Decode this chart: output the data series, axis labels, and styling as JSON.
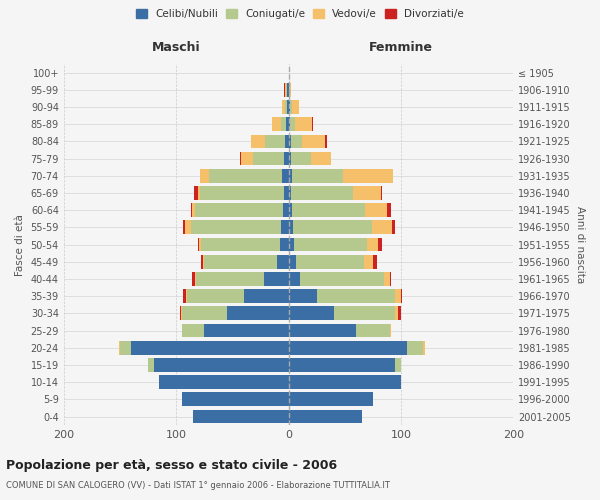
{
  "age_groups": [
    "0-4",
    "5-9",
    "10-14",
    "15-19",
    "20-24",
    "25-29",
    "30-34",
    "35-39",
    "40-44",
    "45-49",
    "50-54",
    "55-59",
    "60-64",
    "65-69",
    "70-74",
    "75-79",
    "80-84",
    "85-89",
    "90-94",
    "95-99",
    "100+"
  ],
  "birth_years": [
    "2001-2005",
    "1996-2000",
    "1991-1995",
    "1986-1990",
    "1981-1985",
    "1976-1980",
    "1971-1975",
    "1966-1970",
    "1961-1965",
    "1956-1960",
    "1951-1955",
    "1946-1950",
    "1941-1945",
    "1936-1940",
    "1931-1935",
    "1926-1930",
    "1921-1925",
    "1916-1920",
    "1911-1915",
    "1906-1910",
    "≤ 1905"
  ],
  "males": {
    "celibi": [
      85,
      95,
      115,
      120,
      140,
      75,
      55,
      40,
      22,
      10,
      8,
      7,
      5,
      4,
      6,
      4,
      3,
      2,
      1,
      1,
      0
    ],
    "coniugati": [
      0,
      0,
      0,
      5,
      10,
      20,
      40,
      50,
      60,
      65,
      70,
      80,
      78,
      75,
      65,
      28,
      18,
      5,
      2,
      1,
      0
    ],
    "vedovi": [
      0,
      0,
      0,
      0,
      1,
      0,
      1,
      1,
      1,
      1,
      2,
      5,
      3,
      2,
      8,
      10,
      12,
      8,
      3,
      1,
      0
    ],
    "divorziati": [
      0,
      0,
      0,
      0,
      0,
      0,
      1,
      3,
      3,
      2,
      1,
      2,
      1,
      3,
      0,
      1,
      0,
      0,
      0,
      1,
      0
    ]
  },
  "females": {
    "nubili": [
      65,
      75,
      100,
      95,
      105,
      60,
      40,
      25,
      10,
      7,
      5,
      4,
      3,
      2,
      3,
      2,
      2,
      1,
      1,
      0,
      0
    ],
    "coniugate": [
      0,
      0,
      0,
      5,
      15,
      30,
      55,
      70,
      75,
      60,
      65,
      70,
      65,
      55,
      45,
      18,
      10,
      5,
      2,
      1,
      0
    ],
    "vedove": [
      0,
      0,
      0,
      0,
      1,
      1,
      2,
      5,
      5,
      8,
      10,
      18,
      20,
      25,
      45,
      18,
      20,
      15,
      6,
      1,
      0
    ],
    "divorziate": [
      0,
      0,
      0,
      0,
      0,
      0,
      3,
      1,
      1,
      4,
      3,
      3,
      3,
      1,
      0,
      0,
      2,
      1,
      0,
      0,
      0
    ]
  },
  "colors": {
    "celibi": "#3a6ea5",
    "coniugati": "#b5c98e",
    "vedovi": "#f5c069",
    "divorziati": "#cc2222"
  },
  "xlim": 200,
  "title": "Popolazione per età, sesso e stato civile - 2006",
  "subtitle": "COMUNE DI SAN CALOGERO (VV) - Dati ISTAT 1° gennaio 2006 - Elaborazione TUTTITALIA.IT",
  "ylabel": "Fasce di età",
  "ylabel2": "Anni di nascita",
  "xlabel_maschi": "Maschi",
  "xlabel_femmine": "Femmine"
}
